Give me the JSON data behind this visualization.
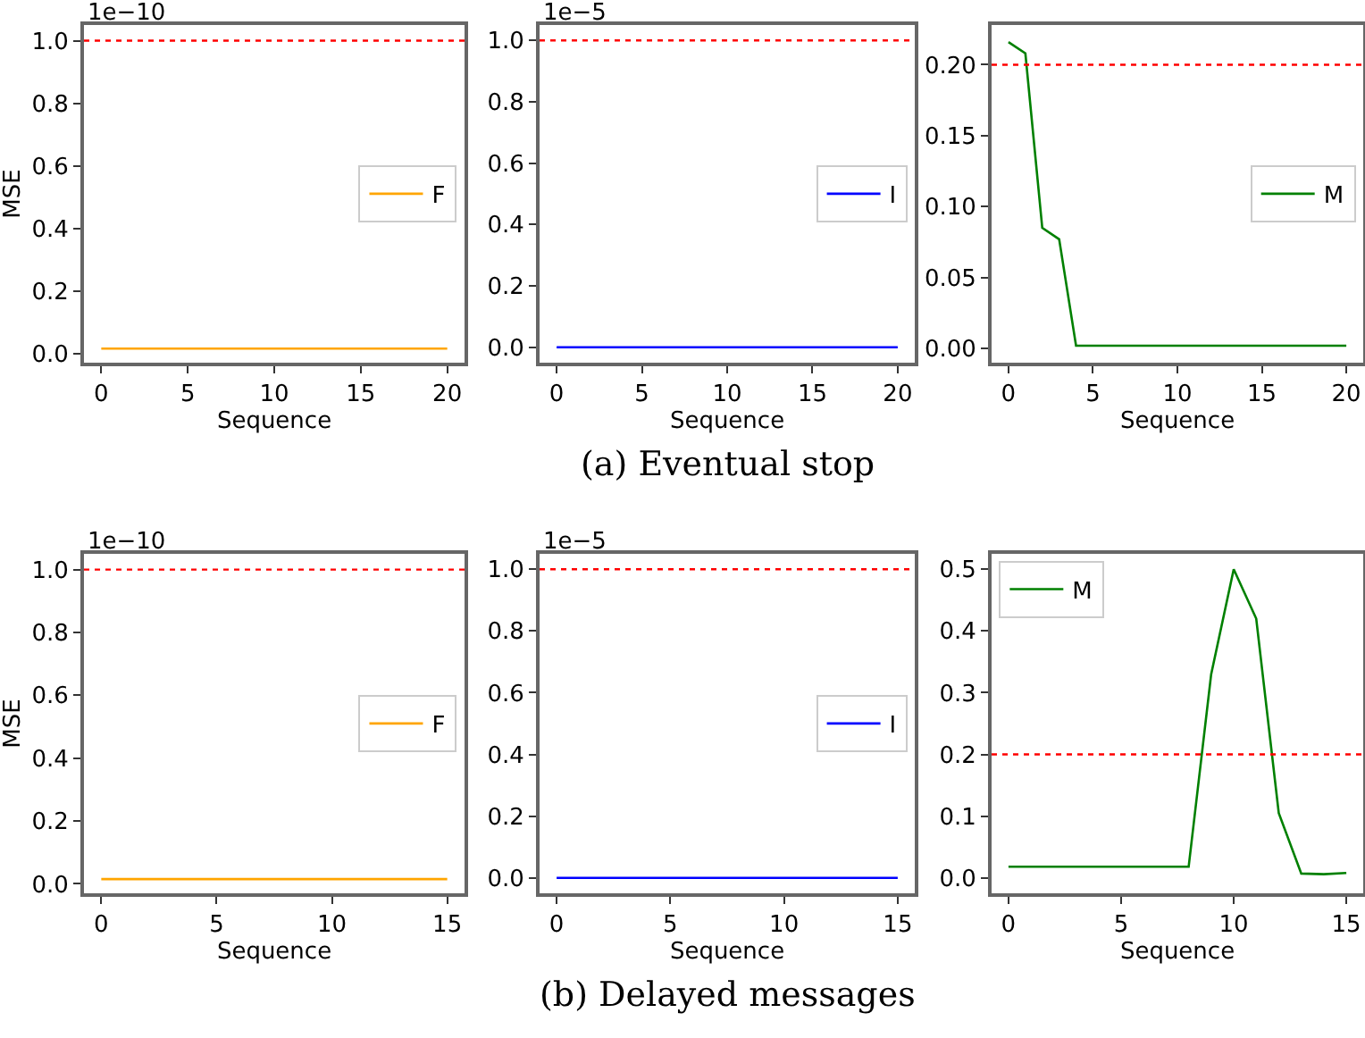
{
  "chart_data": [
    {
      "type": "line",
      "ylabel": "MSE",
      "xlabel": "Sequence",
      "annotations": [
        "1e−10"
      ],
      "x": [
        0,
        1,
        2,
        3,
        4,
        5,
        6,
        7,
        8,
        9,
        10,
        11,
        12,
        13,
        14,
        15,
        16,
        17,
        18,
        19,
        20
      ],
      "series": [
        {
          "name": "F",
          "color": "#ffa500",
          "values": [
            0.015,
            0.015,
            0.015,
            0.015,
            0.015,
            0.015,
            0.015,
            0.015,
            0.015,
            0.015,
            0.015,
            0.015,
            0.015,
            0.015,
            0.015,
            0.015,
            0.015,
            0.015,
            0.015,
            0.015,
            0.015
          ]
        }
      ],
      "xlim": [
        -1,
        21
      ],
      "xticks": [
        0,
        5,
        10,
        15,
        20
      ],
      "ylim": [
        -0.03,
        1.05
      ],
      "yticks": [
        {
          "value": 0,
          "label": "0.0"
        },
        0.2,
        0.4,
        0.6,
        0.8,
        {
          "value": 1,
          "label": "1.0"
        }
      ],
      "ref_lines": [
        {
          "axis": "y",
          "value": 1,
          "color": "#ff0000",
          "line_style": "dotted"
        }
      ],
      "legend": "right",
      "grid": false,
      "line_style": "solid",
      "marker": "none"
    },
    {
      "type": "line",
      "xlabel": "Sequence",
      "annotations": [
        "1e−5",
        "(a) Eventual stop"
      ],
      "x": [
        0,
        1,
        2,
        3,
        4,
        5,
        6,
        7,
        8,
        9,
        10,
        11,
        12,
        13,
        14,
        15,
        16,
        17,
        18,
        19,
        20
      ],
      "series": [
        {
          "name": "I",
          "color": "#0000ff",
          "values": [
            0,
            0,
            0,
            0,
            0,
            0,
            0,
            0,
            0,
            0,
            0,
            0,
            0,
            0,
            0,
            0,
            0,
            0,
            0,
            0,
            0
          ]
        }
      ],
      "xlim": [
        -1,
        21
      ],
      "xticks": [
        0,
        5,
        10,
        15,
        20
      ],
      "ylim": [
        -0.05,
        1.05
      ],
      "yticks": [
        {
          "value": 0,
          "label": "0.0"
        },
        0.2,
        0.4,
        0.6,
        0.8,
        {
          "value": 1,
          "label": "1.0"
        }
      ],
      "ref_lines": [
        {
          "axis": "y",
          "value": 1,
          "color": "#ff0000",
          "line_style": "dotted"
        }
      ],
      "legend": "right",
      "grid": false,
      "line_style": "solid",
      "marker": "none"
    },
    {
      "type": "line",
      "xlabel": "Sequence",
      "x": [
        0,
        1,
        2,
        3,
        4,
        5,
        6,
        7,
        8,
        9,
        10,
        11,
        12,
        13,
        14,
        15,
        16,
        17,
        18,
        19,
        20
      ],
      "series": [
        {
          "name": "M",
          "color": "#008000",
          "values": [
            0.216,
            0.208,
            0.085,
            0.077,
            0.002,
            0.002,
            0.002,
            0.002,
            0.002,
            0.002,
            0.002,
            0.002,
            0.002,
            0.002,
            0.002,
            0.002,
            0.002,
            0.002,
            0.002,
            0.002,
            0.002
          ]
        }
      ],
      "xlim": [
        -1,
        21
      ],
      "xticks": [
        0,
        5,
        10,
        15,
        20
      ],
      "ylim": [
        -0.01,
        0.228
      ],
      "yticks": [
        {
          "value": 0,
          "label": "0.00"
        },
        0.05,
        {
          "value": 0.1,
          "label": "0.10"
        },
        0.15,
        {
          "value": 0.2,
          "label": "0.20"
        }
      ],
      "ref_lines": [
        {
          "axis": "y",
          "value": 0.2,
          "color": "#ff0000",
          "line_style": "dotted"
        }
      ],
      "legend": "right",
      "grid": false,
      "line_style": "solid",
      "marker": "none"
    },
    {
      "type": "line",
      "ylabel": "MSE",
      "xlabel": "Sequence",
      "annotations": [
        "1e−10"
      ],
      "x": [
        0,
        1,
        2,
        3,
        4,
        5,
        6,
        7,
        8,
        9,
        10,
        11,
        12,
        13,
        14,
        15
      ],
      "series": [
        {
          "name": "F",
          "color": "#ffa500",
          "values": [
            0.015,
            0.015,
            0.015,
            0.015,
            0.015,
            0.015,
            0.015,
            0.015,
            0.015,
            0.015,
            0.015,
            0.015,
            0.015,
            0.015,
            0.015,
            0.015
          ]
        }
      ],
      "xlim": [
        -0.75,
        15.75
      ],
      "xticks": [
        0,
        5,
        10,
        15
      ],
      "ylim": [
        -0.03,
        1.05
      ],
      "yticks": [
        {
          "value": 0,
          "label": "0.0"
        },
        0.2,
        0.4,
        0.6,
        0.8,
        {
          "value": 1,
          "label": "1.0"
        }
      ],
      "ref_lines": [
        {
          "axis": "y",
          "value": 1,
          "color": "#ff0000",
          "line_style": "dotted"
        }
      ],
      "legend": "right",
      "grid": false,
      "line_style": "solid",
      "marker": "none"
    },
    {
      "type": "line",
      "xlabel": "Sequence",
      "annotations": [
        "1e−5",
        "(b) Delayed messages"
      ],
      "x": [
        0,
        1,
        2,
        3,
        4,
        5,
        6,
        7,
        8,
        9,
        10,
        11,
        12,
        13,
        14,
        15
      ],
      "series": [
        {
          "name": "I",
          "color": "#0000ff",
          "values": [
            0,
            0,
            0,
            0,
            0,
            0,
            0,
            0,
            0,
            0,
            0,
            0,
            0,
            0,
            0,
            0
          ]
        }
      ],
      "xlim": [
        -0.75,
        15.75
      ],
      "xticks": [
        0,
        5,
        10,
        15
      ],
      "ylim": [
        -0.05,
        1.05
      ],
      "yticks": [
        {
          "value": 0,
          "label": "0.0"
        },
        0.2,
        0.4,
        0.6,
        0.8,
        {
          "value": 1,
          "label": "1.0"
        }
      ],
      "ref_lines": [
        {
          "axis": "y",
          "value": 1,
          "color": "#ff0000",
          "line_style": "dotted"
        }
      ],
      "legend": "right",
      "grid": false,
      "line_style": "solid",
      "marker": "none"
    },
    {
      "type": "line",
      "xlabel": "Sequence",
      "x": [
        0,
        1,
        2,
        3,
        4,
        5,
        6,
        7,
        8,
        9,
        10,
        11,
        12,
        13,
        14,
        15
      ],
      "series": [
        {
          "name": "M",
          "color": "#008000",
          "values": [
            0.018,
            0.018,
            0.018,
            0.018,
            0.018,
            0.018,
            0.018,
            0.018,
            0.018,
            0.33,
            0.5,
            0.42,
            0.105,
            0.007,
            0.006,
            0.008
          ]
        }
      ],
      "xlim": [
        -0.75,
        15.75
      ],
      "xticks": [
        0,
        5,
        10,
        15
      ],
      "ylim": [
        -0.025,
        0.525
      ],
      "yticks": [
        {
          "value": 0,
          "label": "0.0"
        },
        0.1,
        0.2,
        0.3,
        0.4,
        0.5
      ],
      "ref_lines": [
        {
          "axis": "y",
          "value": 0.2,
          "color": "#ff0000",
          "line_style": "dotted"
        }
      ],
      "legend": "top left",
      "grid": false,
      "line_style": "solid",
      "marker": "none"
    }
  ]
}
